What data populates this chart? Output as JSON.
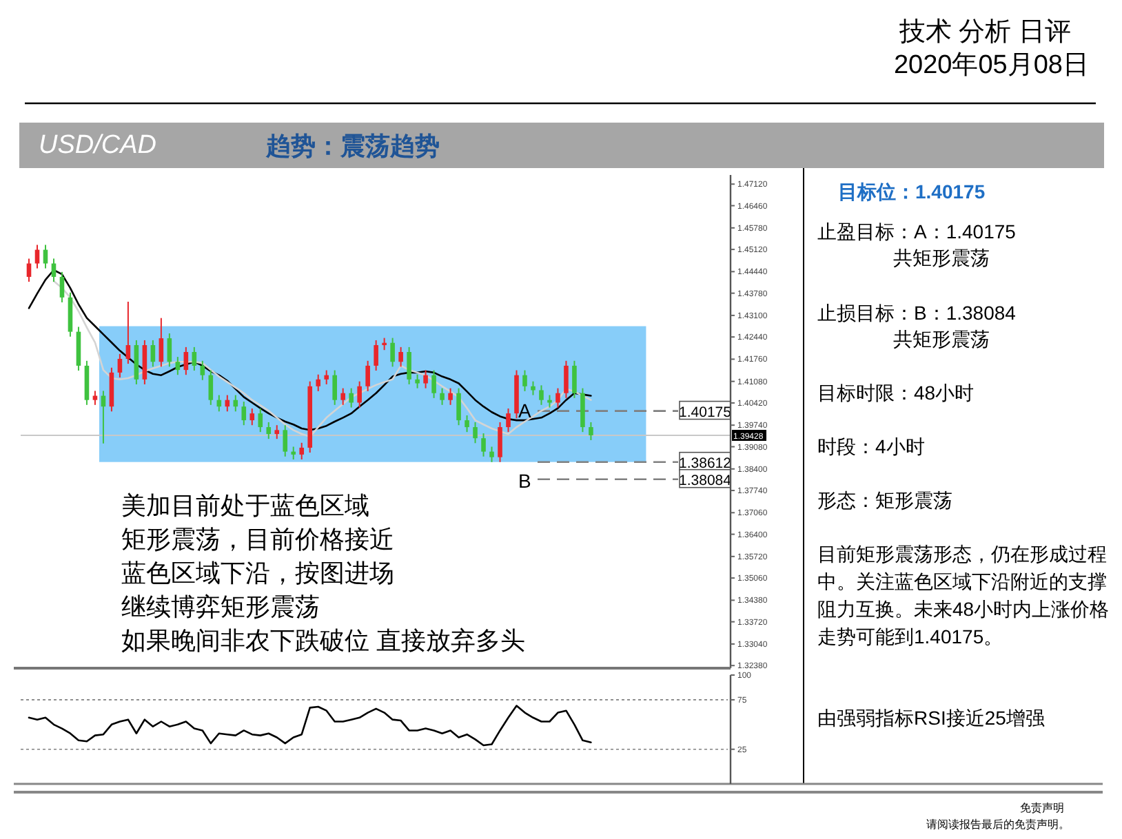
{
  "chart_data": [
    {
      "type": "candlestick",
      "title": "USD/CAD",
      "subtitle": "趋势：震荡趋势",
      "categories": [
        null,
        null,
        null,
        null,
        null,
        null,
        null,
        null,
        null,
        null,
        null,
        null,
        null,
        null,
        null,
        null,
        null,
        null,
        null,
        null,
        null,
        null,
        null,
        null,
        null,
        null,
        null,
        null,
        null,
        null,
        null,
        null,
        null,
        null,
        null,
        null,
        null,
        null,
        null,
        null,
        null,
        null,
        null,
        null,
        null,
        null,
        null,
        null,
        null,
        null,
        null,
        null,
        null,
        null,
        null,
        null,
        null,
        null,
        null,
        null,
        null,
        null,
        null,
        null,
        null,
        null,
        null,
        null,
        null
      ],
      "ohlc": [
        [
          1.4428,
          1.4484,
          1.4413,
          1.4469
        ],
        [
          1.4469,
          1.4526,
          1.4454,
          1.4511
        ],
        [
          1.4511,
          1.4526,
          1.4454,
          1.4469
        ],
        [
          1.4469,
          1.4484,
          1.4413,
          1.4428
        ],
        [
          1.4428,
          1.4443,
          1.435,
          1.4365
        ],
        [
          1.4365,
          1.438,
          1.4245,
          1.426
        ],
        [
          1.426,
          1.4275,
          1.4141,
          1.4156
        ],
        [
          1.4156,
          1.4171,
          1.4036,
          1.4051
        ],
        [
          1.4051,
          1.4079,
          1.4036,
          1.4064
        ],
        [
          1.4064,
          1.4079,
          1.3918,
          1.4031
        ],
        [
          1.4031,
          1.415,
          1.4016,
          1.4135
        ],
        [
          1.4135,
          1.4192,
          1.412,
          1.4177
        ],
        [
          1.4177,
          1.4352,
          1.4162,
          1.4219
        ],
        [
          1.4219,
          1.4234,
          1.4099,
          1.4114
        ],
        [
          1.4114,
          1.4234,
          1.4099,
          1.4219
        ],
        [
          1.4219,
          1.4234,
          1.4153,
          1.4168
        ],
        [
          1.4168,
          1.4302,
          1.4153,
          1.424
        ],
        [
          1.424,
          1.4255,
          1.4153,
          1.4168
        ],
        [
          1.4168,
          1.4183,
          1.4128,
          1.4143
        ],
        [
          1.4143,
          1.4213,
          1.4128,
          1.4198
        ],
        [
          1.4198,
          1.4213,
          1.4141,
          1.4156
        ],
        [
          1.4156,
          1.4171,
          1.4112,
          1.4127
        ],
        [
          1.4127,
          1.4142,
          1.4036,
          1.4051
        ],
        [
          1.4051,
          1.4066,
          1.4016,
          1.4031
        ],
        [
          1.4031,
          1.4066,
          1.4016,
          1.4051
        ],
        [
          1.4051,
          1.4066,
          1.4016,
          1.4031
        ],
        [
          1.4031,
          1.4046,
          1.3974,
          1.3989
        ],
        [
          1.3989,
          1.4025,
          1.3974,
          1.401
        ],
        [
          1.401,
          1.4025,
          1.3953,
          1.3968
        ],
        [
          1.3968,
          1.3983,
          1.3932,
          1.3947
        ],
        [
          1.3947,
          1.3974,
          1.3932,
          1.3959
        ],
        [
          1.3959,
          1.3974,
          1.3878,
          1.3893
        ],
        [
          1.3893,
          1.3908,
          1.3869,
          1.3884
        ],
        [
          1.3884,
          1.392,
          1.3869,
          1.3905
        ],
        [
          1.3905,
          1.4108,
          1.389,
          1.4093
        ],
        [
          1.4093,
          1.4129,
          1.4078,
          1.4114
        ],
        [
          1.4114,
          1.4142,
          1.4099,
          1.4127
        ],
        [
          1.4127,
          1.4142,
          1.4036,
          1.4051
        ],
        [
          1.4051,
          1.4087,
          1.4036,
          1.4072
        ],
        [
          1.4072,
          1.4087,
          1.4028,
          1.4043
        ],
        [
          1.4043,
          1.4108,
          1.4028,
          1.4093
        ],
        [
          1.4093,
          1.4171,
          1.4078,
          1.4156
        ],
        [
          1.4156,
          1.4234,
          1.4141,
          1.4219
        ],
        [
          1.4219,
          1.4241,
          1.4204,
          1.4226
        ],
        [
          1.4226,
          1.4241,
          1.4153,
          1.4168
        ],
        [
          1.4168,
          1.4213,
          1.4153,
          1.4198
        ],
        [
          1.4198,
          1.4213,
          1.4099,
          1.4114
        ],
        [
          1.4114,
          1.4129,
          1.4087,
          1.4102
        ],
        [
          1.4102,
          1.4142,
          1.4087,
          1.4127
        ],
        [
          1.4127,
          1.4142,
          1.4057,
          1.4072
        ],
        [
          1.4072,
          1.4087,
          1.4036,
          1.4051
        ],
        [
          1.4051,
          1.4087,
          1.4036,
          1.4072
        ],
        [
          1.4072,
          1.4087,
          1.3974,
          1.3989
        ],
        [
          1.3989,
          1.4004,
          1.3953,
          1.3968
        ],
        [
          1.3968,
          1.3983,
          1.3919,
          1.3934
        ],
        [
          1.3934,
          1.3949,
          1.3878,
          1.3893
        ],
        [
          1.3893,
          1.3908,
          1.3861,
          1.3876
        ],
        [
          1.3876,
          1.3983,
          1.3861,
          1.3968
        ],
        [
          1.3968,
          1.4025,
          1.3953,
          1.401
        ],
        [
          1.401,
          1.4142,
          1.3995,
          1.4127
        ],
        [
          1.4127,
          1.4142,
          1.4078,
          1.4093
        ],
        [
          1.4093,
          1.4108,
          1.4066,
          1.4081
        ],
        [
          1.4081,
          1.4096,
          1.4036,
          1.4051
        ],
        [
          1.4051,
          1.4066,
          1.4028,
          1.4043
        ],
        [
          1.4043,
          1.4087,
          1.4028,
          1.4072
        ],
        [
          1.4072,
          1.4171,
          1.4057,
          1.4156
        ],
        [
          1.4156,
          1.4171,
          1.4057,
          1.4072
        ],
        [
          1.4072,
          1.4087,
          1.3953,
          1.3968
        ],
        [
          1.3968,
          1.3983,
          1.3928,
          1.3943
        ]
      ],
      "series": [
        {
          "type": "line",
          "color": "#000000",
          "values": [
            1.4332,
            1.4377,
            1.4419,
            1.4449,
            1.4436,
            1.4394,
            1.4344,
            1.4302,
            1.4277,
            1.4252,
            1.4227,
            1.4202,
            1.4181,
            1.416,
            1.4143,
            1.4131,
            1.4127,
            1.4139,
            1.4152,
            1.416,
            1.4168,
            1.4156,
            1.4139,
            1.4127,
            1.411,
            1.4085,
            1.406,
            1.4043,
            1.4026,
            1.401,
            1.3997,
            1.3985,
            1.3976,
            1.3964,
            1.3959,
            1.3964,
            1.3972,
            1.3985,
            1.3997,
            1.401,
            1.4031,
            1.4051,
            1.4072,
            1.4097,
            1.4123,
            1.4131,
            1.4135,
            1.4135,
            1.4139,
            1.4135,
            1.4123,
            1.4114,
            1.4102,
            1.4077,
            1.4051,
            1.4031,
            1.4014,
            1.4001,
            1.3993,
            1.3989,
            1.3989,
            1.3993,
            1.3997,
            1.401,
            1.4026,
            1.4051,
            1.4072,
            1.4068,
            1.4064
          ]
        },
        {
          "type": "line",
          "color": "#d4d4d4",
          "values": [
            null,
            null,
            null,
            1.4415,
            1.4394,
            1.4365,
            1.4323,
            1.4273,
            1.4227,
            1.4143,
            1.4118,
            1.4114,
            1.4118,
            1.4127,
            1.4139,
            1.4148,
            1.4156,
            1.4164,
            1.4168,
            1.4168,
            1.4168,
            1.4164,
            1.4143,
            1.4123,
            1.4106,
            1.4089,
            1.4072,
            1.4051,
            1.4035,
            1.4018,
            1.3997,
            1.3976,
            1.3959,
            1.3947,
            1.3939,
            1.3968,
            1.3997,
            1.4018,
            1.4039,
            1.406,
            1.4072,
            1.4085,
            1.4097,
            1.4106,
            1.4114,
            1.4156,
            1.4143,
            1.4135,
            1.4127,
            1.411,
            1.4093,
            1.4077,
            1.406,
            1.4026,
            1.3989,
            1.3976,
            1.3964,
            1.3955,
            1.3947,
            1.3968,
            1.3985,
            1.4001,
            1.4018,
            1.4031,
            1.4051,
            1.4085,
            1.4077,
            1.4064,
            1.4051
          ]
        }
      ],
      "ylim": [
        1.323,
        1.474
      ],
      "yticks": [
        {
          "value": 1.4712,
          "label": "1.47120"
        },
        {
          "value": 1.4646,
          "label": "1.46460"
        },
        {
          "value": 1.4578,
          "label": "1.45780"
        },
        {
          "value": 1.4512,
          "label": "1.45120"
        },
        {
          "value": 1.4444,
          "label": "1.44440"
        },
        {
          "value": 1.4378,
          "label": "1.43780"
        },
        {
          "value": 1.431,
          "label": "1.43100"
        },
        {
          "value": 1.4244,
          "label": "1.42440"
        },
        {
          "value": 1.4176,
          "label": "1.41760"
        },
        {
          "value": 1.4108,
          "label": "1.41080"
        },
        {
          "value": 1.4042,
          "label": "1.40420"
        },
        {
          "value": 1.3974,
          "label": "1.39740"
        },
        {
          "value": 1.3908,
          "label": "1.39080"
        },
        {
          "value": 1.384,
          "label": "1.38400"
        },
        {
          "value": 1.3774,
          "label": "1.37740"
        },
        {
          "value": 1.3706,
          "label": "1.37060"
        },
        {
          "value": 1.364,
          "label": "1.36400"
        },
        {
          "value": 1.3572,
          "label": "1.35720"
        },
        {
          "value": 1.3506,
          "label": "1.35060"
        },
        {
          "value": 1.3438,
          "label": "1.34380"
        },
        {
          "value": 1.3372,
          "label": "1.33720"
        },
        {
          "value": 1.3304,
          "label": "1.33040"
        },
        {
          "value": 1.3238,
          "label": "1.32380"
        }
      ],
      "bands": [
        {
          "axis": "y",
          "from": 1.38612,
          "to": 1.4277,
          "color": "#87cdf9"
        }
      ],
      "ref_lines": [
        {
          "axis": "y",
          "value": 1.39428,
          "label": "1.39428",
          "color": "#c8c8c8",
          "line_style": "solid"
        },
        {
          "axis": "y",
          "value": 1.40175,
          "label": "1.40175",
          "color": "#808080",
          "line_style": "dashed"
        },
        {
          "axis": "y",
          "value": 1.38612,
          "label": "1.38612",
          "color": "#808080",
          "line_style": "dashed"
        },
        {
          "axis": "y",
          "value": 1.38084,
          "label": "1.38084",
          "color": "#808080",
          "line_style": "dashed"
        }
      ],
      "annotations": [
        "A",
        "B",
        "美加目前处于蓝色区域",
        "矩形震荡，目前价格接近",
        "蓝色区域下沿，按图进场",
        "继续博弈矩形震荡",
        "如果晚间非农下跌破位 直接放弃多头"
      ]
    },
    {
      "type": "line",
      "categories": [
        null,
        null,
        null,
        null,
        null,
        null,
        null,
        null,
        null,
        null,
        null,
        null,
        null,
        null,
        null,
        null,
        null,
        null,
        null,
        null,
        null,
        null,
        null,
        null,
        null,
        null,
        null,
        null,
        null,
        null,
        null,
        null,
        null,
        null,
        null,
        null,
        null,
        null,
        null,
        null,
        null,
        null,
        null,
        null,
        null,
        null,
        null,
        null,
        null,
        null,
        null,
        null,
        null,
        null,
        null,
        null,
        null,
        null,
        null,
        null,
        null,
        null,
        null,
        null,
        null,
        null,
        null,
        null,
        null
      ],
      "series": [
        {
          "color": "#000000",
          "values": [
            57,
            55,
            57,
            50,
            46,
            41,
            34,
            33,
            39,
            40,
            50,
            53,
            55,
            41,
            55,
            48,
            53,
            48,
            50,
            53,
            46,
            44,
            31,
            41,
            40,
            39,
            44,
            40,
            39,
            41,
            37,
            31,
            37,
            40,
            67,
            68,
            64,
            53,
            53,
            55,
            57,
            62,
            66,
            62,
            55,
            54,
            44,
            44,
            46,
            44,
            41,
            44,
            37,
            40,
            35,
            29,
            30,
            44,
            57,
            69,
            62,
            57,
            53,
            53,
            62,
            64,
            50,
            34,
            32
          ]
        }
      ],
      "ylim": [
        -10,
        100
      ],
      "yticks": [
        100,
        75,
        25
      ],
      "ref_lines": [
        {
          "axis": "y",
          "value": 75,
          "color": "#808080",
          "line_style": "dotted"
        },
        {
          "axis": "y",
          "value": 25,
          "color": "#808080",
          "line_style": "dotted"
        }
      ]
    },
    {
      "type": "other",
      "title": "目标位：1.40175",
      "annotations": [
        "止盈目标：A：1.40175",
        "共矩形震荡",
        "止损目标：B：1.38084",
        "共矩形震荡",
        "目标时限：48小时",
        "时段：4小时",
        "形态：矩形震荡",
        "目前矩形震荡形态，仍在形成过程中。关注蓝色区域下沿附近的支撑阻力互换。未来48小时内上涨价格走势可能到1.40175。",
        "由强弱指标RSI接近25增强"
      ]
    },
    {
      "type": "other",
      "title": "技术 分析 日评",
      "subtitle": "2020年05月08日",
      "annotations": [
        "免责声明",
        "请阅读报告最后的免责声明。"
      ]
    }
  ]
}
